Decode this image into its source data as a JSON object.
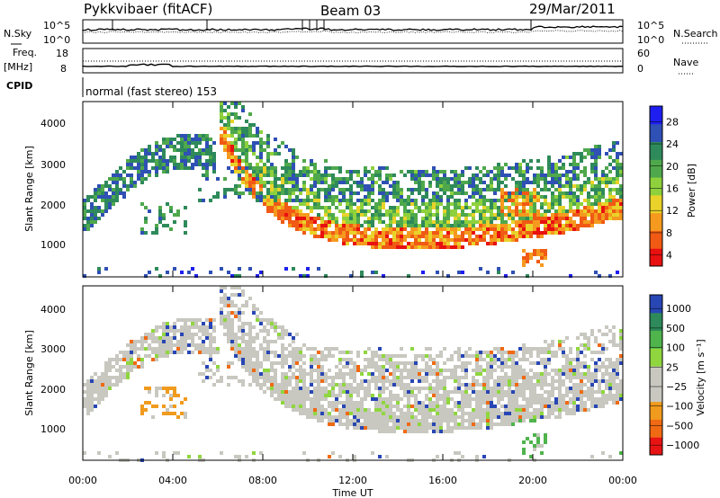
{
  "header": {
    "station": "Pykkvibaer (fitACF)",
    "beam": "Beam 03",
    "date": "29/Mar/2011"
  },
  "top_panels": {
    "nsky_label": "N.Sky",
    "nsky_ticks": [
      "10^5",
      "10^0"
    ],
    "nsearch_label": "N.Search",
    "nsearch_ticks": [
      "10^5",
      "10^0"
    ],
    "freq_label_1": "Freq.",
    "freq_label_2": "[MHz]",
    "freq_ticks": [
      "18",
      "8"
    ],
    "nave_label": "Nave",
    "nave_ticks": [
      "60",
      "0"
    ],
    "cpid_label": "CPID",
    "cpid_text": "normal (fast stereo) 153"
  },
  "chart_data": [
    {
      "type": "heatmap",
      "panel": "power",
      "ylabel": "Slant Range [km]",
      "yticks": [
        "4000",
        "3000",
        "2000",
        "1000"
      ],
      "ylim": [
        200,
        4500
      ],
      "x_ticks": [
        "00:00",
        "04:00",
        "08:00",
        "12:00",
        "16:00",
        "20:00",
        "00:00"
      ],
      "colorbar": {
        "label": "Power [dB]",
        "ticks": [
          "28",
          "24",
          "20",
          "16",
          "12",
          "8",
          "4"
        ],
        "colors": [
          "#1e1ef0",
          "#2f50b4",
          "#2e8a5a",
          "#4fa84c",
          "#8ed13d",
          "#e9d22a",
          "#f59a1e",
          "#f05a14",
          "#e81010"
        ]
      }
    },
    {
      "type": "heatmap",
      "panel": "velocity",
      "ylabel": "Slant Range [km]",
      "yticks": [
        "4000",
        "3000",
        "2000",
        "1000"
      ],
      "ylim": [
        200,
        4500
      ],
      "x_ticks": [
        "00:00",
        "04:00",
        "08:00",
        "12:00",
        "16:00",
        "20:00",
        "00:00"
      ],
      "xlabel": "Time UT",
      "colorbar": {
        "label": "Velocity [m s⁻¹]",
        "ticks": [
          "1000",
          "500",
          "100",
          "25",
          "−25",
          "−100",
          "−500",
          "−1000"
        ],
        "colors": [
          "#2846b4",
          "#2e8a5a",
          "#4fb44c",
          "#8fd63f",
          "#c8c8c0",
          "#c8c8c0",
          "#f09a1e",
          "#f06a14",
          "#e81414"
        ]
      }
    }
  ]
}
